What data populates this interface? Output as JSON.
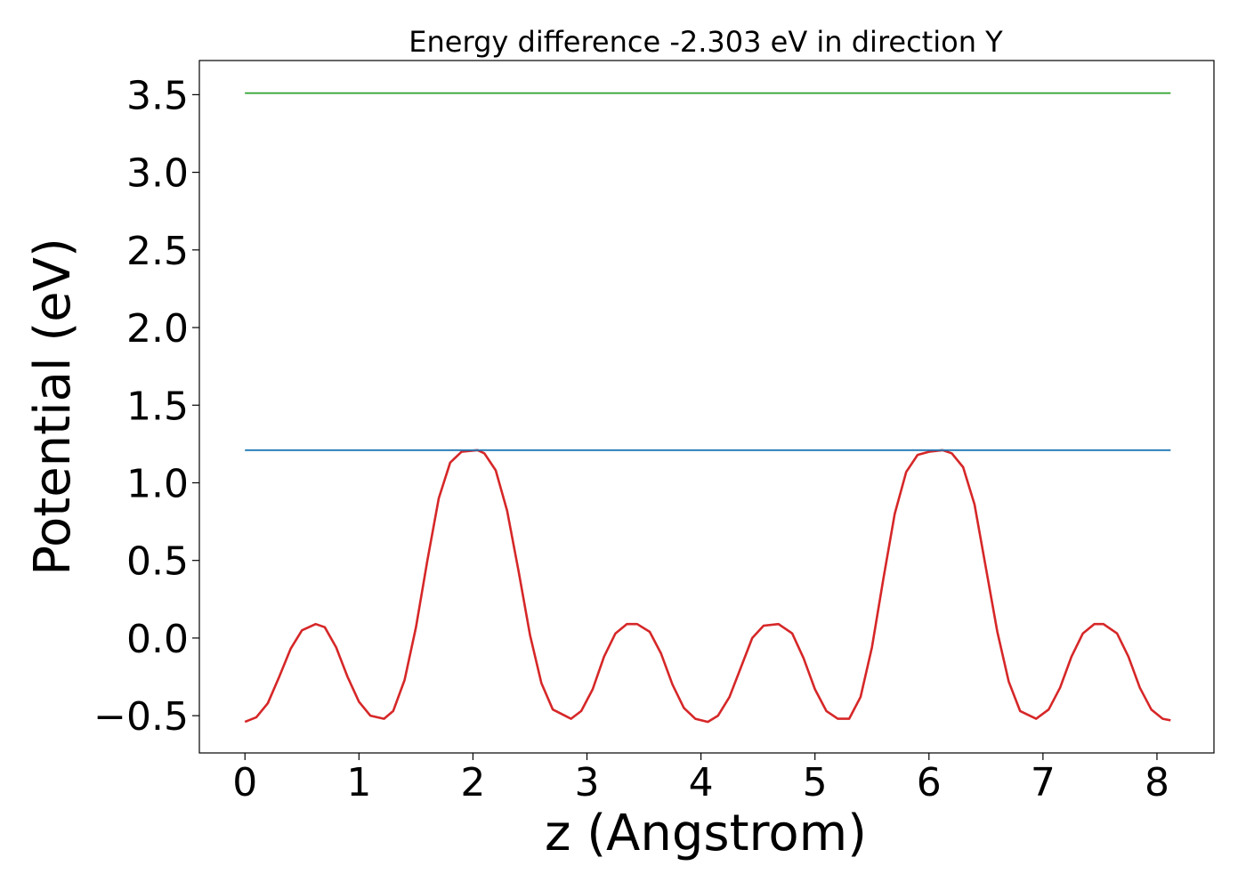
{
  "chart_data": {
    "type": "line",
    "title": "Energy difference -2.303 eV in direction Y",
    "xlabel": "z (Angstrom)",
    "ylabel": "Potential (eV)",
    "xlim": [
      -0.4,
      8.5
    ],
    "ylim": [
      -0.74,
      3.72
    ],
    "xticks": [
      0,
      1,
      2,
      3,
      4,
      5,
      6,
      7,
      8
    ],
    "xtick_labels": [
      "0",
      "1",
      "2",
      "3",
      "4",
      "5",
      "6",
      "7",
      "8"
    ],
    "yticks": [
      -0.5,
      0.0,
      0.5,
      1.0,
      1.5,
      2.0,
      2.5,
      3.0,
      3.5
    ],
    "ytick_labels": [
      "−0.5",
      "0.0",
      "0.5",
      "1.0",
      "1.5",
      "2.0",
      "2.5",
      "3.0",
      "3.5"
    ],
    "grid": false,
    "legend": "none",
    "series": [
      {
        "color": "#d62728",
        "x": [
          0,
          0.1,
          0.2,
          0.3,
          0.4,
          0.5,
          0.62,
          0.7,
          0.8,
          0.9,
          1.0,
          1.1,
          1.22,
          1.3,
          1.4,
          1.5,
          1.6,
          1.7,
          1.8,
          1.9,
          2.04,
          2.1,
          2.2,
          2.3,
          2.4,
          2.5,
          2.6,
          2.7,
          2.86,
          2.95,
          3.05,
          3.15,
          3.25,
          3.35,
          3.44,
          3.55,
          3.65,
          3.75,
          3.85,
          3.95,
          4.06,
          4.15,
          4.25,
          4.35,
          4.45,
          4.55,
          4.68,
          4.8,
          4.9,
          5.0,
          5.1,
          5.2,
          5.3,
          5.4,
          5.5,
          5.6,
          5.7,
          5.8,
          5.9,
          6.0,
          6.12,
          6.2,
          6.3,
          6.4,
          6.5,
          6.6,
          6.7,
          6.8,
          6.94,
          7.05,
          7.15,
          7.25,
          7.35,
          7.45,
          7.53,
          7.65,
          7.75,
          7.85,
          7.95,
          8.05,
          8.12
        ],
        "y": [
          -0.54,
          -0.51,
          -0.42,
          -0.25,
          -0.07,
          0.05,
          0.09,
          0.07,
          -0.06,
          -0.25,
          -0.41,
          -0.5,
          -0.52,
          -0.47,
          -0.27,
          0.07,
          0.5,
          0.9,
          1.13,
          1.2,
          1.21,
          1.19,
          1.08,
          0.82,
          0.43,
          0.02,
          -0.29,
          -0.46,
          -0.52,
          -0.47,
          -0.33,
          -0.12,
          0.03,
          0.09,
          0.09,
          0.04,
          -0.1,
          -0.3,
          -0.45,
          -0.52,
          -0.54,
          -0.5,
          -0.38,
          -0.19,
          0.0,
          0.08,
          0.09,
          0.03,
          -0.13,
          -0.33,
          -0.47,
          -0.52,
          -0.52,
          -0.38,
          -0.06,
          0.38,
          0.8,
          1.07,
          1.18,
          1.2,
          1.21,
          1.19,
          1.1,
          0.86,
          0.45,
          0.04,
          -0.28,
          -0.47,
          -0.52,
          -0.46,
          -0.32,
          -0.12,
          0.03,
          0.09,
          0.09,
          0.03,
          -0.12,
          -0.32,
          -0.46,
          -0.52,
          -0.53
        ]
      },
      {
        "color": "#1f77b4",
        "x": [
          0,
          8.12
        ],
        "y": [
          1.21,
          1.21
        ]
      },
      {
        "color": "#2ca02c",
        "x": [
          0,
          8.12
        ],
        "y": [
          3.51,
          3.51
        ]
      }
    ]
  }
}
